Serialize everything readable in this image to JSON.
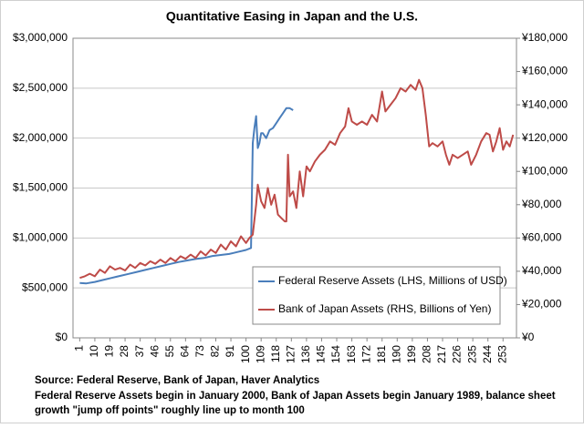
{
  "chart_data": {
    "type": "line",
    "title": "Quantitative Easing in Japan and the U.S.",
    "xlim": [
      -3,
      261
    ],
    "xticks": [
      1,
      10,
      19,
      28,
      37,
      46,
      55,
      64,
      73,
      82,
      91,
      100,
      109,
      118,
      127,
      136,
      145,
      154,
      163,
      172,
      181,
      190,
      199,
      208,
      217,
      226,
      235,
      244,
      253
    ],
    "ylim": [
      0,
      3000000
    ],
    "yticks": [
      {
        "value": 0,
        "label": "$0"
      },
      {
        "value": 500000,
        "label": "$500,000"
      },
      {
        "value": 1000000,
        "label": "$1,000,000"
      },
      {
        "value": 1500000,
        "label": "$1,500,000"
      },
      {
        "value": 2000000,
        "label": "$2,000,000"
      },
      {
        "value": 2500000,
        "label": "$2,500,000"
      },
      {
        "value": 3000000,
        "label": "$3,000,000"
      }
    ],
    "y2lim": [
      0,
      180000
    ],
    "y2ticks": [
      {
        "value": 0,
        "label": "¥0"
      },
      {
        "value": 20000,
        "label": "¥20,000"
      },
      {
        "value": 40000,
        "label": "¥40,000"
      },
      {
        "value": 60000,
        "label": "¥60,000"
      },
      {
        "value": 80000,
        "label": "¥80,000"
      },
      {
        "value": 100000,
        "label": "¥100,000"
      },
      {
        "value": 120000,
        "label": "¥120,000"
      },
      {
        "value": 140000,
        "label": "¥140,000"
      },
      {
        "value": 160000,
        "label": "¥160,000"
      },
      {
        "value": 180000,
        "label": "¥180,000"
      }
    ],
    "grid": true,
    "legend": "lower right",
    "series": [
      {
        "name": "Federal Reserve Assets (LHS, Millions of USD)",
        "color": "#4a7ebb",
        "axis": "y",
        "x": [
          1,
          5,
          10,
          15,
          20,
          25,
          30,
          35,
          40,
          45,
          50,
          55,
          60,
          65,
          70,
          75,
          80,
          85,
          90,
          95,
          100,
          103,
          104,
          105,
          106,
          107,
          108,
          109,
          110,
          112,
          114,
          116,
          118,
          120,
          122,
          124,
          126,
          128
        ],
        "values": [
          550000,
          545000,
          560000,
          580000,
          600000,
          620000,
          640000,
          660000,
          680000,
          700000,
          720000,
          740000,
          760000,
          775000,
          790000,
          800000,
          820000,
          830000,
          840000,
          860000,
          880000,
          900000,
          1950000,
          2100000,
          2220000,
          1900000,
          1950000,
          2050000,
          2050000,
          2000000,
          2080000,
          2100000,
          2150000,
          2200000,
          2250000,
          2300000,
          2300000,
          2280000
        ]
      },
      {
        "name": "Bank of Japan Assets (RHS, Billions of Yen)",
        "color": "#be4b48",
        "axis": "y2",
        "x": [
          1,
          4,
          7,
          10,
          13,
          16,
          19,
          22,
          25,
          28,
          31,
          34,
          37,
          40,
          43,
          46,
          49,
          52,
          55,
          58,
          61,
          64,
          67,
          70,
          73,
          76,
          79,
          82,
          85,
          88,
          91,
          94,
          97,
          100,
          102,
          104,
          106,
          107,
          109,
          111,
          113,
          115,
          117,
          119,
          121,
          123,
          124,
          125,
          126,
          128,
          130,
          132,
          134,
          136,
          138,
          141,
          144,
          147,
          150,
          153,
          156,
          159,
          161,
          163,
          166,
          169,
          172,
          175,
          178,
          181,
          183,
          186,
          189,
          192,
          195,
          198,
          201,
          203,
          205,
          207,
          209,
          211,
          214,
          217,
          219,
          221,
          223,
          226,
          229,
          232,
          234,
          237,
          240,
          243,
          245,
          247,
          249,
          251,
          253,
          255,
          257,
          259
        ],
        "values": [
          36000,
          37000,
          38500,
          37000,
          41000,
          39000,
          43000,
          41000,
          42000,
          40500,
          44000,
          42000,
          45000,
          43500,
          46000,
          44500,
          47000,
          45000,
          48000,
          46000,
          49000,
          47500,
          50000,
          48000,
          52000,
          49500,
          53000,
          51000,
          56000,
          53000,
          58000,
          55000,
          61000,
          57000,
          60000,
          62000,
          80000,
          92000,
          82000,
          78000,
          90000,
          80000,
          86000,
          74000,
          72000,
          70000,
          70000,
          110000,
          85000,
          88000,
          78000,
          100000,
          85000,
          103000,
          100000,
          106000,
          110000,
          113000,
          118000,
          116000,
          123000,
          127000,
          138000,
          130000,
          128000,
          130000,
          128000,
          134000,
          130000,
          148000,
          136000,
          140000,
          144000,
          150000,
          148000,
          152000,
          149000,
          155000,
          150000,
          134000,
          115000,
          117000,
          115000,
          118000,
          110000,
          104000,
          110000,
          108000,
          110000,
          112000,
          104000,
          110000,
          118000,
          123000,
          122000,
          112000,
          118000,
          126000,
          113000,
          118000,
          115000,
          122000
        ]
      }
    ]
  },
  "notes": [
    "Source:  Federal Reserve, Bank of Japan, Haver Analytics",
    "Federal Reserve Assets begin in January 2000, Bank of Japan Assets begin January 1989, balance sheet",
    "growth \"jump off points\" roughly line up to month 100"
  ]
}
